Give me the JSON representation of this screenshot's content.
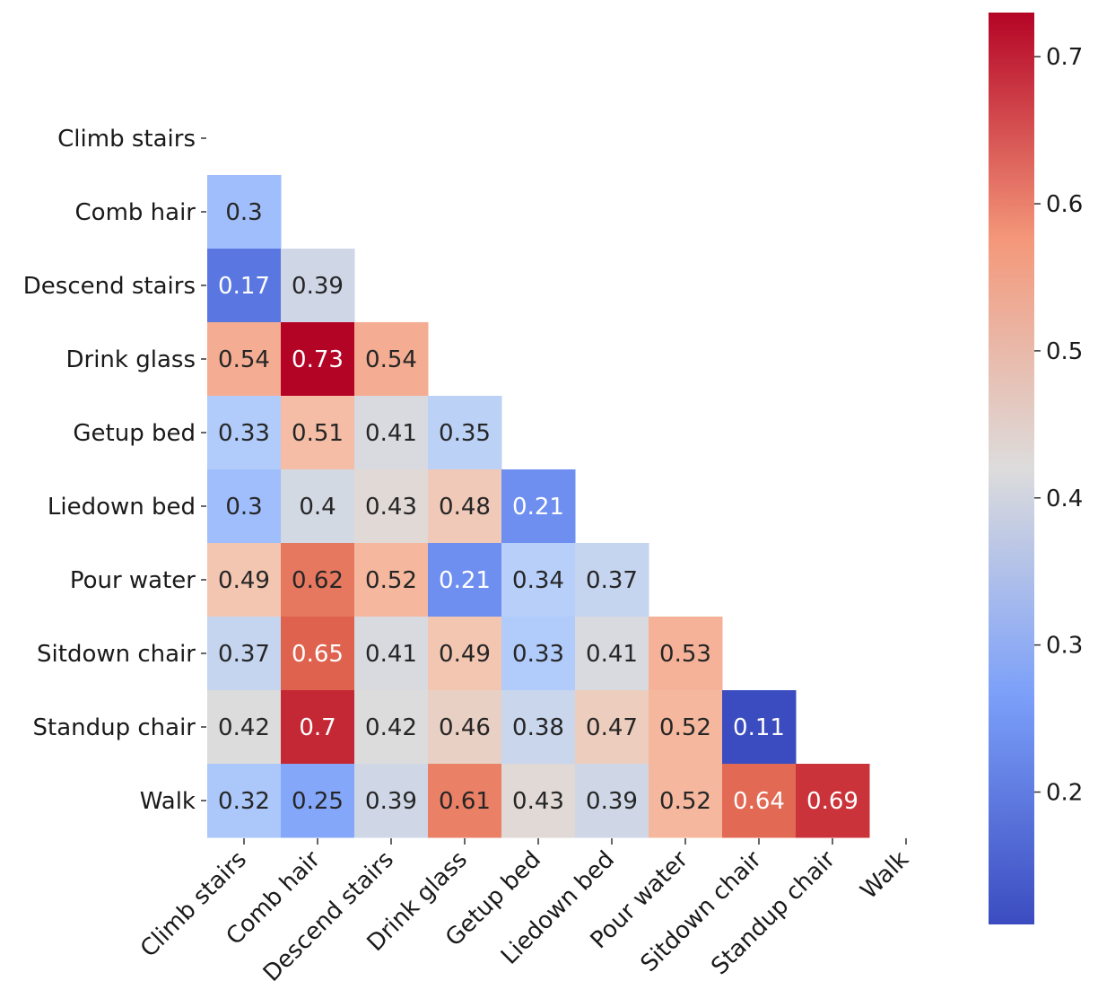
{
  "chart_data": {
    "type": "heatmap",
    "title": "",
    "xlabel": "",
    "ylabel": "",
    "colormap": "coolwarm",
    "mask": "upper-triangle-including-diagonal",
    "labels": [
      "Climb stairs",
      "Comb hair",
      "Descend stairs",
      "Drink glass",
      "Getup bed",
      "Liedown bed",
      "Pour water",
      "Sitdown chair",
      "Standup chair",
      "Walk"
    ],
    "values": [
      [],
      [
        0.3
      ],
      [
        0.17,
        0.39
      ],
      [
        0.54,
        0.73,
        0.54
      ],
      [
        0.33,
        0.51,
        0.41,
        0.35
      ],
      [
        0.3,
        0.4,
        0.43,
        0.48,
        0.21
      ],
      [
        0.49,
        0.62,
        0.52,
        0.21,
        0.34,
        0.37
      ],
      [
        0.37,
        0.65,
        0.41,
        0.49,
        0.33,
        0.41,
        0.53
      ],
      [
        0.42,
        0.7,
        0.42,
        0.46,
        0.38,
        0.47,
        0.52,
        0.11
      ],
      [
        0.32,
        0.25,
        0.39,
        0.61,
        0.43,
        0.39,
        0.52,
        0.64,
        0.69
      ]
    ],
    "colorbar": {
      "vmin": 0.11,
      "vmax": 0.73,
      "ticks": [
        0.2,
        0.3,
        0.4,
        0.5,
        0.6,
        0.7
      ],
      "tick_labels": [
        "0.2",
        "0.3",
        "0.4",
        "0.5",
        "0.6",
        "0.7"
      ]
    }
  }
}
